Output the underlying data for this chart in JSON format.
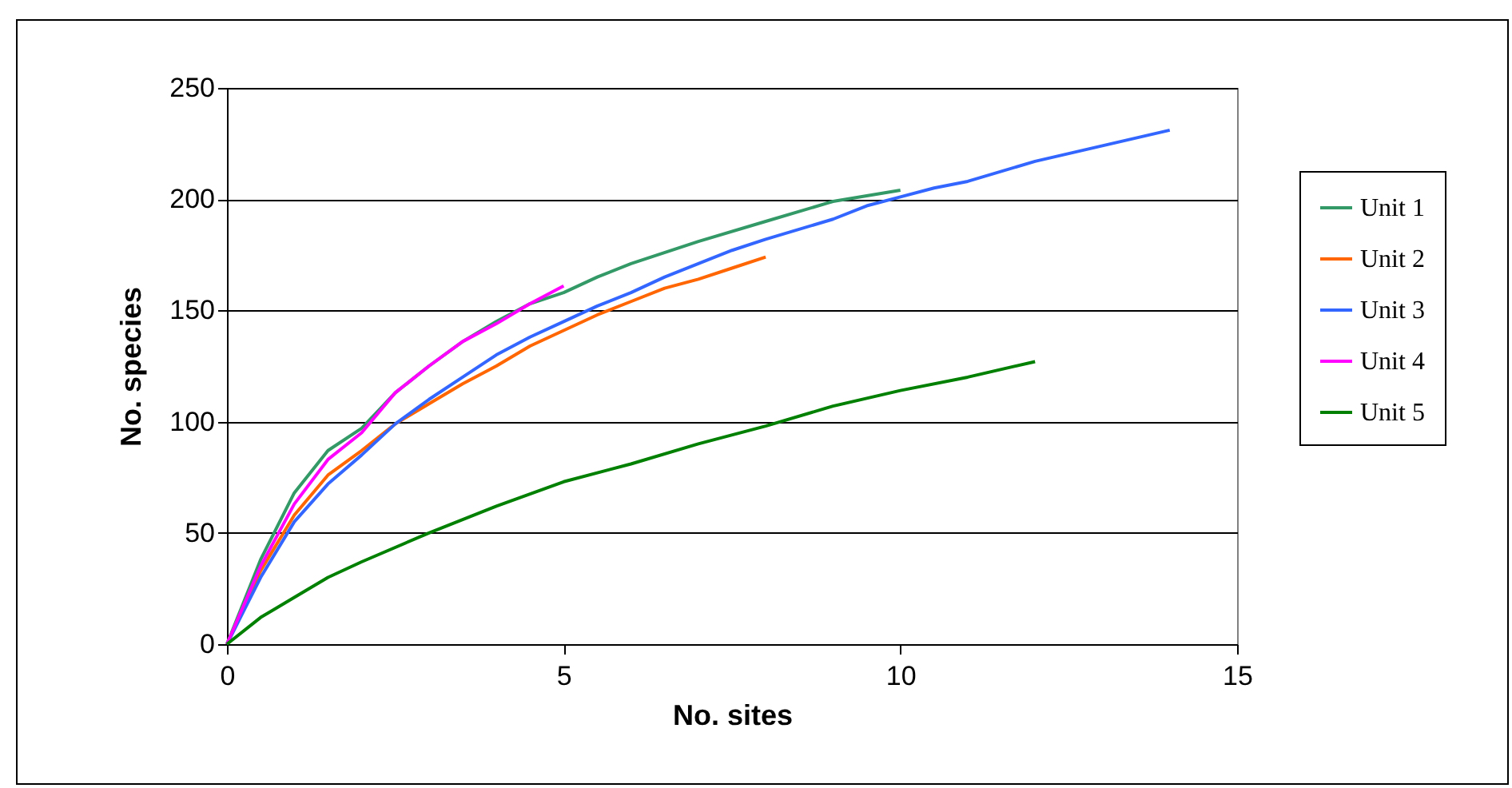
{
  "chart_data": {
    "type": "line",
    "xlabel": "No. sites",
    "ylabel": "No. species",
    "xlim": [
      0,
      15
    ],
    "ylim": [
      0,
      250
    ],
    "xticks": [
      0,
      5,
      10,
      15
    ],
    "yticks": [
      0,
      50,
      100,
      150,
      200,
      250
    ],
    "grid": "y",
    "legend": "right",
    "marker": "none",
    "line_style": "solid",
    "series": [
      {
        "name": "Unit 1",
        "color": "#339966",
        "x": [
          0,
          0.5,
          1,
          1.5,
          2,
          2.5,
          3,
          3.5,
          4,
          4.5,
          5,
          5.5,
          6,
          7,
          8,
          9,
          10
        ],
        "values": [
          0,
          38,
          68,
          87,
          97,
          113,
          125,
          136,
          145,
          153,
          158,
          165,
          171,
          181,
          190,
          199,
          204
        ]
      },
      {
        "name": "Unit 2",
        "color": "#ff6600",
        "x": [
          0,
          0.5,
          1,
          1.5,
          2,
          2.5,
          3,
          3.5,
          4,
          4.5,
          5,
          5.5,
          6,
          6.5,
          7,
          7.5,
          8
        ],
        "values": [
          0,
          33,
          58,
          76,
          87,
          99,
          108,
          117,
          125,
          134,
          141,
          148,
          154,
          160,
          164,
          169,
          174
        ]
      },
      {
        "name": "Unit 3",
        "color": "#3366ff",
        "x": [
          0,
          0.5,
          1,
          1.5,
          2,
          2.5,
          3,
          3.5,
          4,
          4.5,
          5,
          5.5,
          6,
          6.5,
          7,
          7.5,
          8,
          9,
          9.5,
          10,
          10.5,
          11,
          12,
          13,
          14
        ],
        "values": [
          0,
          30,
          55,
          72,
          85,
          99,
          110,
          120,
          130,
          138,
          145,
          152,
          158,
          165,
          171,
          177,
          182,
          191,
          197,
          201,
          205,
          208,
          217,
          224,
          231
        ]
      },
      {
        "name": "Unit 4",
        "color": "#ff00ff",
        "x": [
          0,
          0.5,
          1,
          1.5,
          2,
          2.5,
          3,
          3.5,
          4,
          4.5,
          5
        ],
        "values": [
          0,
          35,
          63,
          83,
          95,
          113,
          125,
          136,
          144,
          153,
          161
        ]
      },
      {
        "name": "Unit 5",
        "color": "#008000",
        "x": [
          0,
          0.5,
          1,
          1.5,
          2,
          3,
          4,
          5,
          6,
          7,
          8,
          9,
          10,
          11,
          12
        ],
        "values": [
          0,
          12,
          21,
          30,
          37,
          50,
          62,
          73,
          81,
          90,
          98,
          107,
          114,
          120,
          127
        ]
      }
    ]
  }
}
